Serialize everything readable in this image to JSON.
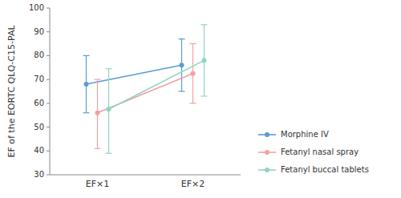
{
  "chart_data": {
    "type": "line",
    "categories": [
      "EF×1",
      "EF×2"
    ],
    "series": [
      {
        "name": "Morphine IV",
        "color": "#5b9bd5",
        "values": [
          68,
          76
        ],
        "ci_lower": [
          56,
          65
        ],
        "ci_upper": [
          80,
          87
        ]
      },
      {
        "name": "Fetanyl nasal spray",
        "color": "#f4a0a0",
        "values": [
          56,
          72.5
        ],
        "ci_lower": [
          41,
          60
        ],
        "ci_upper": [
          70,
          85
        ]
      },
      {
        "name": "Fetanyl buccal tablets",
        "color": "#90d5c0",
        "values": [
          57.5,
          78
        ],
        "ci_lower": [
          39,
          63
        ],
        "ci_upper": [
          74.5,
          93
        ]
      }
    ],
    "ylim": [
      30,
      100
    ],
    "yticks": [
      30,
      40,
      50,
      60,
      70,
      80,
      90,
      100
    ],
    "ylabel": "EF of the EORTC QLQ-C15-PAL",
    "grid": false,
    "legend": "right",
    "marker": "circle"
  }
}
